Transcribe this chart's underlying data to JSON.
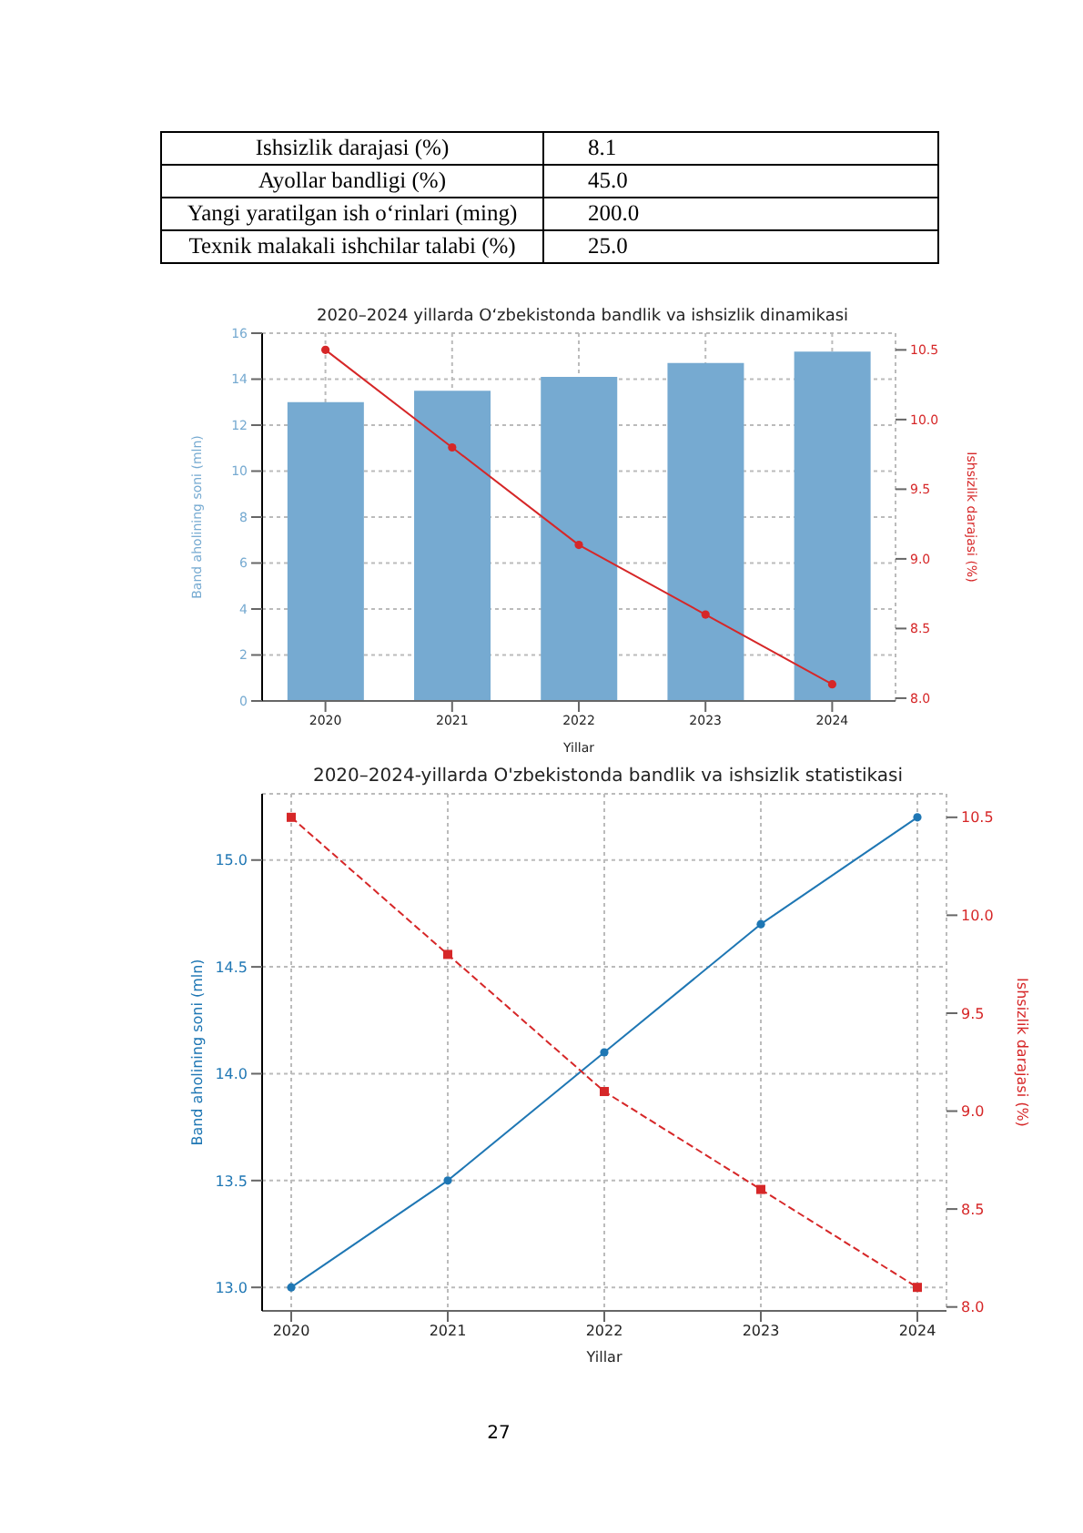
{
  "chart_data": [
    {
      "type": "other",
      "annotations": [
        "Ishsizlik darajasi (%)",
        "8.1",
        "Ayollar bandligi (%)",
        "45.0",
        "Yangi yaratilgan ish o‘rinlari (ming)",
        "200.0",
        "Texnik malakali ishchilar talabi (%)",
        "25.0"
      ]
    },
    {
      "type": "bar",
      "title": "2020–2024 yillarda O‘zbekistonda bandlik va ishsizlik dinamikasi",
      "xlabel": "Yillar",
      "ylabel": "Band aholining soni (mln)",
      "y2label": "Ishsizlik darajasi (%)",
      "categories": [
        "2020",
        "2021",
        "2022",
        "2023",
        "2024"
      ],
      "series": [
        {
          "type": "bar",
          "color": "#76aad1",
          "values": [
            13.0,
            13.5,
            14.1,
            14.7,
            15.2
          ]
        },
        {
          "type": "line",
          "color": "#d62728",
          "axis": "y2",
          "marker": "circle",
          "line_style": "solid",
          "values": [
            10.5,
            9.8,
            9.1,
            8.6,
            8.1
          ]
        }
      ],
      "ylim": [
        0,
        16
      ],
      "yticks": [
        0,
        2,
        4,
        6,
        8,
        10,
        12,
        14,
        16
      ],
      "y2lim": [
        7.98,
        10.62
      ],
      "y2ticks": [
        {
          "value": 8,
          "label": "8.0"
        },
        8.5,
        {
          "value": 10,
          "label": "10.0"
        },
        9.5,
        {
          "value": 9,
          "label": "9.0"
        },
        10.5
      ],
      "grid": true
    },
    {
      "type": "line",
      "title": "2020–2024-yillarda O'zbekistonda bandlik va ishsizlik statistikasi",
      "xlabel": "Yillar",
      "ylabel": "Band aholining soni (mln)",
      "y2label": "Ishsizlik darajasi (%)",
      "categories": [
        "2020",
        "2021",
        "2022",
        "2023",
        "2024"
      ],
      "series": [
        {
          "type": "line",
          "color": "#1f77b4",
          "marker": "circle",
          "line_style": "solid",
          "values": [
            13.0,
            13.5,
            14.1,
            14.7,
            15.2
          ]
        },
        {
          "type": "line",
          "color": "#d62728",
          "axis": "y2",
          "marker": "square",
          "line_style": "dashed",
          "values": [
            10.5,
            9.8,
            9.1,
            8.6,
            8.1
          ]
        }
      ],
      "ylim": [
        12.89,
        15.31
      ],
      "yticks": [
        {
          "value": 13,
          "label": "13.0"
        },
        13.5,
        {
          "value": 14,
          "label": "14.0"
        },
        14.5,
        {
          "value": 15,
          "label": "15.0"
        }
      ],
      "y2lim": [
        7.98,
        10.62
      ],
      "y2ticks": [
        {
          "value": 8,
          "label": "8.0"
        },
        8.5,
        {
          "value": 9,
          "label": "9.0"
        },
        9.5,
        {
          "value": 10,
          "label": "10.0"
        },
        10.5
      ],
      "grid": true,
      "annotations": [
        "27"
      ]
    }
  ]
}
